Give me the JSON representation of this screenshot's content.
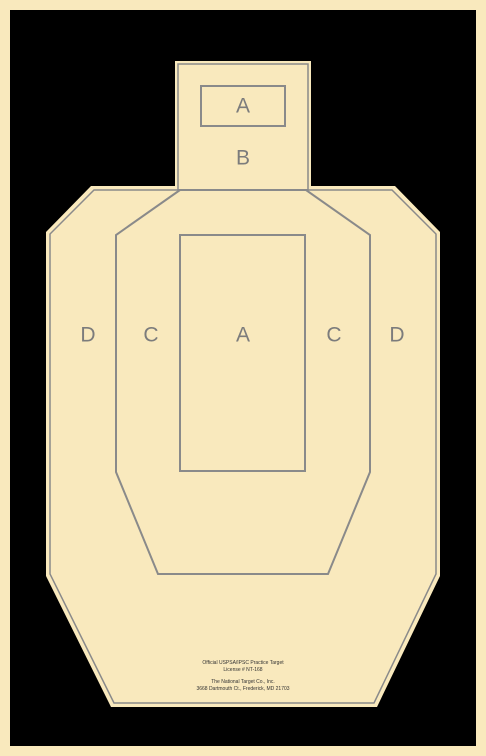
{
  "colors": {
    "border": "#f9e9bd",
    "background": "#000000",
    "target_fill": "#f9e9bd",
    "scoring_lines": "#8a8a8a",
    "zone_letters": "#7c7c7c"
  },
  "zones": {
    "head_a": "A",
    "head_b": "B",
    "body_a": "A",
    "body_c_left": "C",
    "body_c_right": "C",
    "body_d_left": "D",
    "body_d_right": "D"
  },
  "footer": {
    "line1": "Official USPSA/IPSC Practice Target",
    "line2": "License # NT-168",
    "line3": "The National Target Co., Inc.",
    "line4": "3668 Dartmouth Ct., Frederick, MD 21703"
  }
}
